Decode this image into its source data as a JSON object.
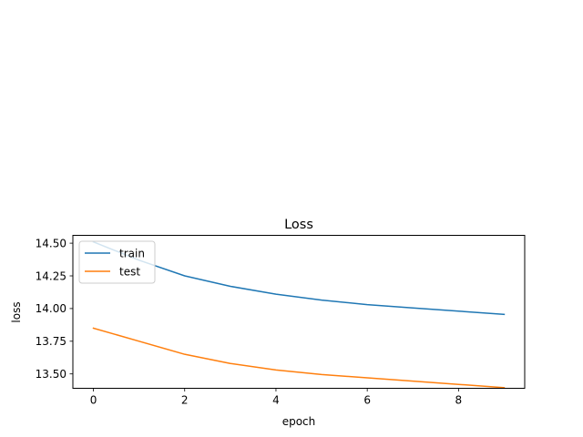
{
  "chart_data": {
    "type": "line",
    "title": "Loss",
    "xlabel": "epoch",
    "ylabel": "loss",
    "x": [
      0,
      1,
      2,
      3,
      4,
      5,
      6,
      7,
      8,
      9
    ],
    "xlim": [
      -0.45,
      9.45
    ],
    "ylim": [
      13.39,
      14.56
    ],
    "xticks": [
      0,
      2,
      4,
      6,
      8
    ],
    "xtick_labels": [
      "0",
      "2",
      "4",
      "6",
      "8"
    ],
    "yticks": [
      13.5,
      13.75,
      14.0,
      14.25,
      14.5
    ],
    "ytick_labels": [
      "13.50",
      "13.75",
      "14.00",
      "14.25",
      "14.50"
    ],
    "grid": false,
    "legend": {
      "position": "upper-left"
    },
    "series": [
      {
        "name": "train",
        "color": "#1f77b4",
        "values": [
          14.51,
          14.37,
          14.25,
          14.17,
          14.11,
          14.065,
          14.03,
          14.005,
          13.98,
          13.955
        ]
      },
      {
        "name": "test",
        "color": "#ff7f0e",
        "values": [
          13.85,
          13.75,
          13.65,
          13.58,
          13.53,
          13.495,
          13.47,
          13.445,
          13.42,
          13.395
        ]
      }
    ]
  }
}
